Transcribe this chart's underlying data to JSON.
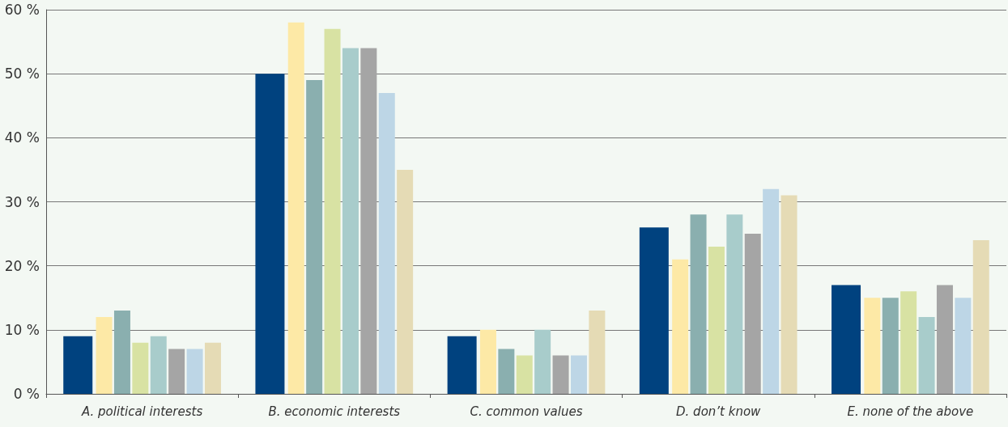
{
  "chart_data": {
    "type": "bar",
    "categories": [
      "A. political interests",
      "B. economic interests",
      "C. common values",
      "D. don’t know",
      "E. none of the above"
    ],
    "series": [
      {
        "color": "#00427f",
        "values": [
          9,
          50,
          9,
          26,
          17
        ]
      },
      {
        "color": "#fde9a6",
        "values": [
          12,
          58,
          10,
          21,
          15
        ]
      },
      {
        "color": "#8aafaf",
        "values": [
          13,
          49,
          7,
          28,
          15
        ]
      },
      {
        "color": "#d8e2a3",
        "values": [
          8,
          57,
          6,
          23,
          16
        ]
      },
      {
        "color": "#a8cccb",
        "values": [
          9,
          54,
          10,
          28,
          12
        ]
      },
      {
        "color": "#a5a5a5",
        "values": [
          7,
          54,
          6,
          25,
          17
        ]
      },
      {
        "color": "#bdd6e6",
        "values": [
          7,
          47,
          6,
          32,
          15
        ]
      },
      {
        "color": "#e5dbb5",
        "values": [
          8,
          35,
          13,
          31,
          24
        ]
      }
    ],
    "ylim": [
      0,
      60
    ],
    "yticks": [
      {
        "value": 0,
        "label": "0 %"
      },
      {
        "value": 10,
        "label": "10 %"
      },
      {
        "value": 20,
        "label": "20 %"
      },
      {
        "value": 30,
        "label": "30 %"
      },
      {
        "value": 40,
        "label": "40 %"
      },
      {
        "value": 50,
        "label": "50 %"
      },
      {
        "value": 60,
        "label": "60 %"
      }
    ],
    "grid": "y"
  }
}
